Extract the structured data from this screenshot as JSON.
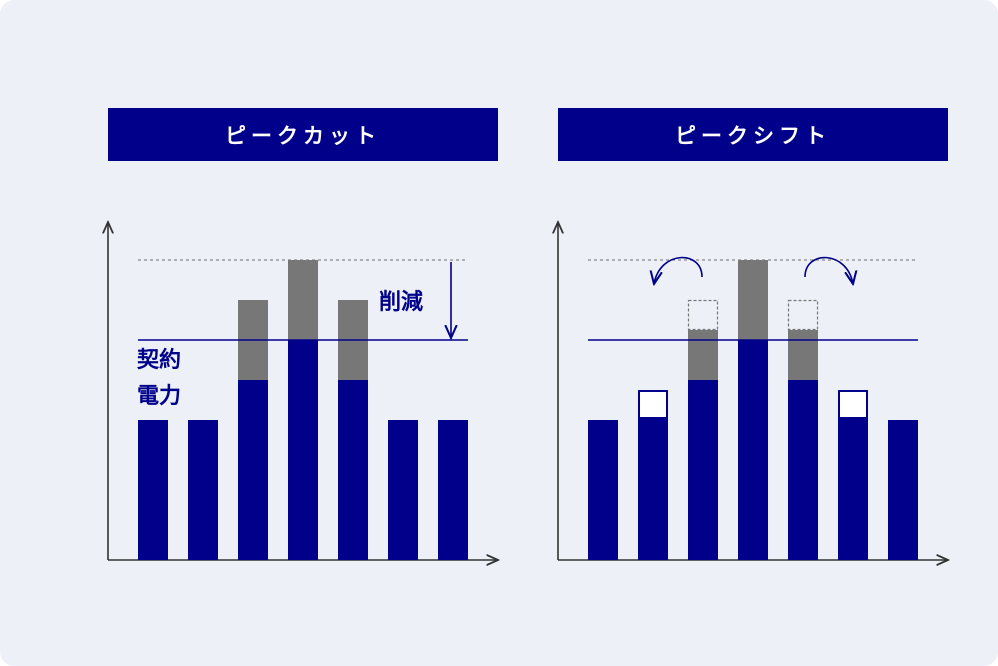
{
  "panels": [
    {
      "title": "ピークカット"
    },
    {
      "title": "ピークシフト"
    }
  ],
  "labels": {
    "contract_line1": "契約",
    "contract_line2": "電力",
    "reduction": "削減"
  },
  "colors": {
    "primary": "#00008b",
    "excess": "#777777",
    "background": "#edf1f7"
  }
}
